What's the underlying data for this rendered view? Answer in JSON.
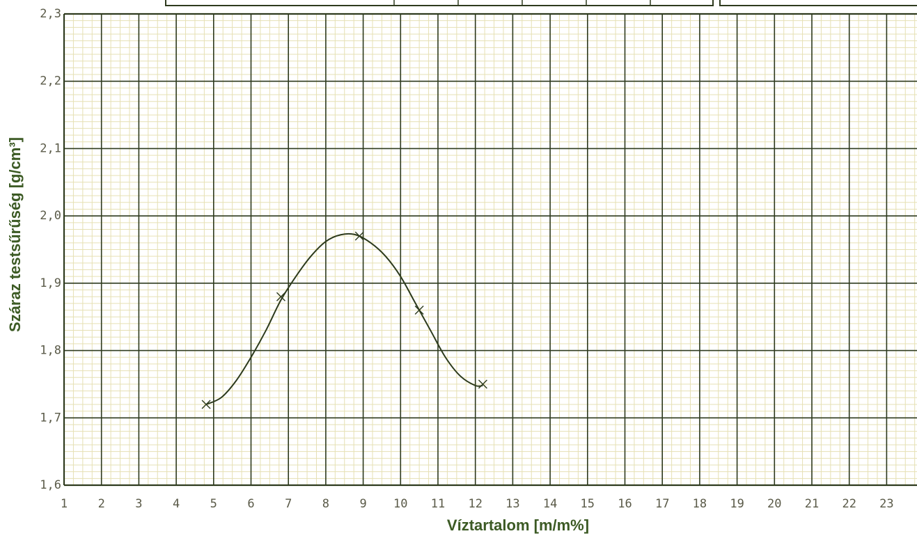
{
  "chart_data": {
    "type": "line",
    "title": "",
    "xlabel": "Víztartalom [m/m%]",
    "ylabel": "Száraz testsűrűség [g/cm³]",
    "xlim": [
      1,
      24
    ],
    "ylim": [
      1.6,
      2.3
    ],
    "x_ticks": [
      "1",
      "2",
      "3",
      "4",
      "5",
      "6",
      "7",
      "8",
      "9",
      "10",
      "11",
      "12",
      "13",
      "14",
      "15",
      "16",
      "17",
      "18",
      "19",
      "20",
      "21",
      "22",
      "23"
    ],
    "y_ticks": [
      "1,6",
      "1,7",
      "1,8",
      "1,9",
      "2,0",
      "2,1",
      "2,2",
      "2,3"
    ],
    "grid": true,
    "series": [
      {
        "marker": "x",
        "points": [
          {
            "x": 4.8,
            "y": 1.72
          },
          {
            "x": 6.8,
            "y": 1.88
          },
          {
            "x": 8.9,
            "y": 1.97
          },
          {
            "x": 10.5,
            "y": 1.86
          },
          {
            "x": 12.2,
            "y": 1.75
          }
        ],
        "curve": [
          {
            "x": 4.8,
            "y": 1.72
          },
          {
            "x": 5.2,
            "y": 1.73
          },
          {
            "x": 5.6,
            "y": 1.755
          },
          {
            "x": 6.0,
            "y": 1.79
          },
          {
            "x": 6.4,
            "y": 1.83
          },
          {
            "x": 6.8,
            "y": 1.875
          },
          {
            "x": 7.2,
            "y": 1.91
          },
          {
            "x": 7.6,
            "y": 1.94
          },
          {
            "x": 8.0,
            "y": 1.962
          },
          {
            "x": 8.4,
            "y": 1.972
          },
          {
            "x": 8.8,
            "y": 1.972
          },
          {
            "x": 9.2,
            "y": 1.96
          },
          {
            "x": 9.6,
            "y": 1.94
          },
          {
            "x": 10.0,
            "y": 1.91
          },
          {
            "x": 10.4,
            "y": 1.87
          },
          {
            "x": 10.8,
            "y": 1.83
          },
          {
            "x": 11.2,
            "y": 1.79
          },
          {
            "x": 11.6,
            "y": 1.762
          },
          {
            "x": 12.0,
            "y": 1.748
          },
          {
            "x": 12.2,
            "y": 1.748
          }
        ]
      }
    ],
    "colors": {
      "major_grid": "#2e3a1e",
      "minor_grid": "#e6e0b4",
      "line": "#2c3a1c",
      "axis_title": "#3c5a24",
      "tick_text": "#5a5a48"
    }
  }
}
